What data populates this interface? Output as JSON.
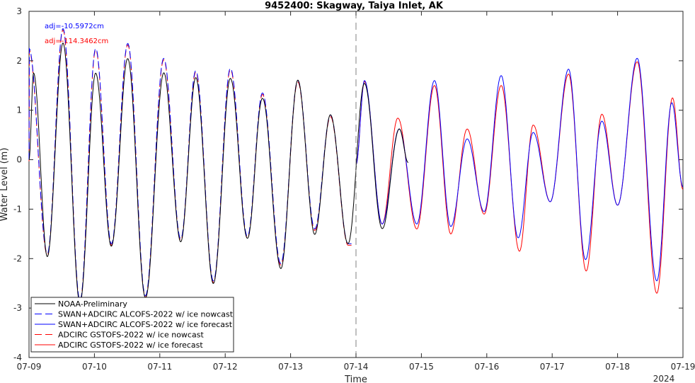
{
  "chart_data": {
    "type": "line",
    "title": "9452400: Skagway, Taiya Inlet, AK",
    "xlabel": "Time",
    "ylabel": "Water Level (m)",
    "year_label": "2024",
    "ylim": [
      -4,
      3
    ],
    "yticks": [
      -4,
      -3,
      -2,
      -1,
      0,
      1,
      2,
      3
    ],
    "xlim": [
      "2024-07-09",
      "2024-07-19"
    ],
    "xtick_labels": [
      "07-09",
      "07-10",
      "07-11",
      "07-12",
      "07-13",
      "07-14",
      "07-15",
      "07-16",
      "07-17",
      "07-18",
      "07-19"
    ],
    "nowcast_end": "2024-07-14",
    "adjustments": [
      {
        "text": "adj=-10.5972cm",
        "color": "#0000ff"
      },
      {
        "text": "adj=-114.3462cm",
        "color": "#ff0000"
      }
    ],
    "legend_position": "bottom-left",
    "series": [
      {
        "name": "NOAA-Preliminary",
        "color": "#000000",
        "style": "solid"
      },
      {
        "name": "SWAN+ADCIRC ALCOFS-2022 w/ ice nowcast",
        "color": "#0000ff",
        "style": "dashed"
      },
      {
        "name": "SWAN+ADCIRC ALCOFS-2022 w/ ice forecast",
        "color": "#0000ff",
        "style": "solid"
      },
      {
        "name": "ADCIRC GSTOFS-2022 w/ ice nowcast",
        "color": "#ff0000",
        "style": "dashed"
      },
      {
        "name": "ADCIRC GSTOFS-2022 w/ ice forecast",
        "color": "#ff0000",
        "style": "solid"
      }
    ],
    "tidal_extrema_days_since_0709": {
      "observed": [
        [
          0,
          0.0
        ],
        [
          0.07,
          1.75
        ],
        [
          0.28,
          -1.95
        ],
        [
          0.52,
          2.35
        ],
        [
          0.78,
          -2.9
        ],
        [
          1.02,
          1.75
        ],
        [
          1.26,
          -1.75
        ],
        [
          1.51,
          2.05
        ],
        [
          1.78,
          -2.8
        ],
        [
          2.06,
          1.75
        ],
        [
          2.32,
          -1.65
        ],
        [
          2.55,
          1.65
        ],
        [
          2.82,
          -2.5
        ],
        [
          3.08,
          1.65
        ],
        [
          3.34,
          -1.6
        ],
        [
          3.57,
          1.25
        ],
        [
          3.85,
          -2.2
        ],
        [
          4.11,
          1.6
        ],
        [
          4.37,
          -1.5
        ],
        [
          4.61,
          0.9
        ],
        [
          4.88,
          -1.7
        ]
      ],
      "model_nowcast": [
        [
          0,
          0.0
        ],
        [
          0.0,
          2.25
        ],
        [
          0.28,
          -1.9
        ],
        [
          0.52,
          2.65
        ],
        [
          0.78,
          -2.85
        ],
        [
          1.02,
          2.25
        ],
        [
          1.26,
          -1.7
        ],
        [
          1.51,
          2.35
        ],
        [
          1.78,
          -2.75
        ],
        [
          2.06,
          2.05
        ],
        [
          2.32,
          -1.6
        ],
        [
          2.55,
          1.8
        ],
        [
          2.82,
          -2.45
        ],
        [
          3.08,
          1.85
        ],
        [
          3.34,
          -1.55
        ],
        [
          3.57,
          1.35
        ],
        [
          3.85,
          -2.1
        ],
        [
          4.11,
          1.6
        ],
        [
          4.37,
          -1.4
        ],
        [
          4.61,
          0.9
        ],
        [
          4.88,
          -1.7
        ]
      ],
      "model_forecast_blue": [
        [
          5.0,
          -0.1
        ],
        [
          5.13,
          1.6
        ],
        [
          5.4,
          -1.3
        ],
        [
          5.66,
          0.62
        ],
        [
          5.93,
          -1.3
        ],
        [
          6.2,
          1.6
        ],
        [
          6.45,
          -1.35
        ],
        [
          6.7,
          0.42
        ],
        [
          6.96,
          -1.05
        ],
        [
          7.22,
          1.7
        ],
        [
          7.48,
          -1.58
        ],
        [
          7.71,
          0.55
        ],
        [
          7.97,
          -0.85
        ],
        [
          8.25,
          1.83
        ],
        [
          8.51,
          -2.02
        ],
        [
          8.76,
          0.78
        ],
        [
          9.0,
          -0.92
        ],
        [
          9.3,
          2.05
        ],
        [
          9.6,
          -2.45
        ],
        [
          9.83,
          1.15
        ],
        [
          10.0,
          -0.55
        ]
      ],
      "model_forecast_red": [
        [
          5.0,
          -0.1
        ],
        [
          5.13,
          1.58
        ],
        [
          5.4,
          -1.3
        ],
        [
          5.64,
          0.84
        ],
        [
          5.93,
          -1.4
        ],
        [
          6.2,
          1.5
        ],
        [
          6.45,
          -1.5
        ],
        [
          6.7,
          0.62
        ],
        [
          6.96,
          -1.1
        ],
        [
          7.22,
          1.5
        ],
        [
          7.5,
          -1.85
        ],
        [
          7.71,
          0.7
        ],
        [
          7.97,
          -0.85
        ],
        [
          8.25,
          1.73
        ],
        [
          8.52,
          -2.25
        ],
        [
          8.76,
          0.92
        ],
        [
          9.0,
          -0.92
        ],
        [
          9.3,
          1.98
        ],
        [
          9.6,
          -2.7
        ],
        [
          9.84,
          1.25
        ],
        [
          10.0,
          -0.6
        ]
      ]
    }
  }
}
